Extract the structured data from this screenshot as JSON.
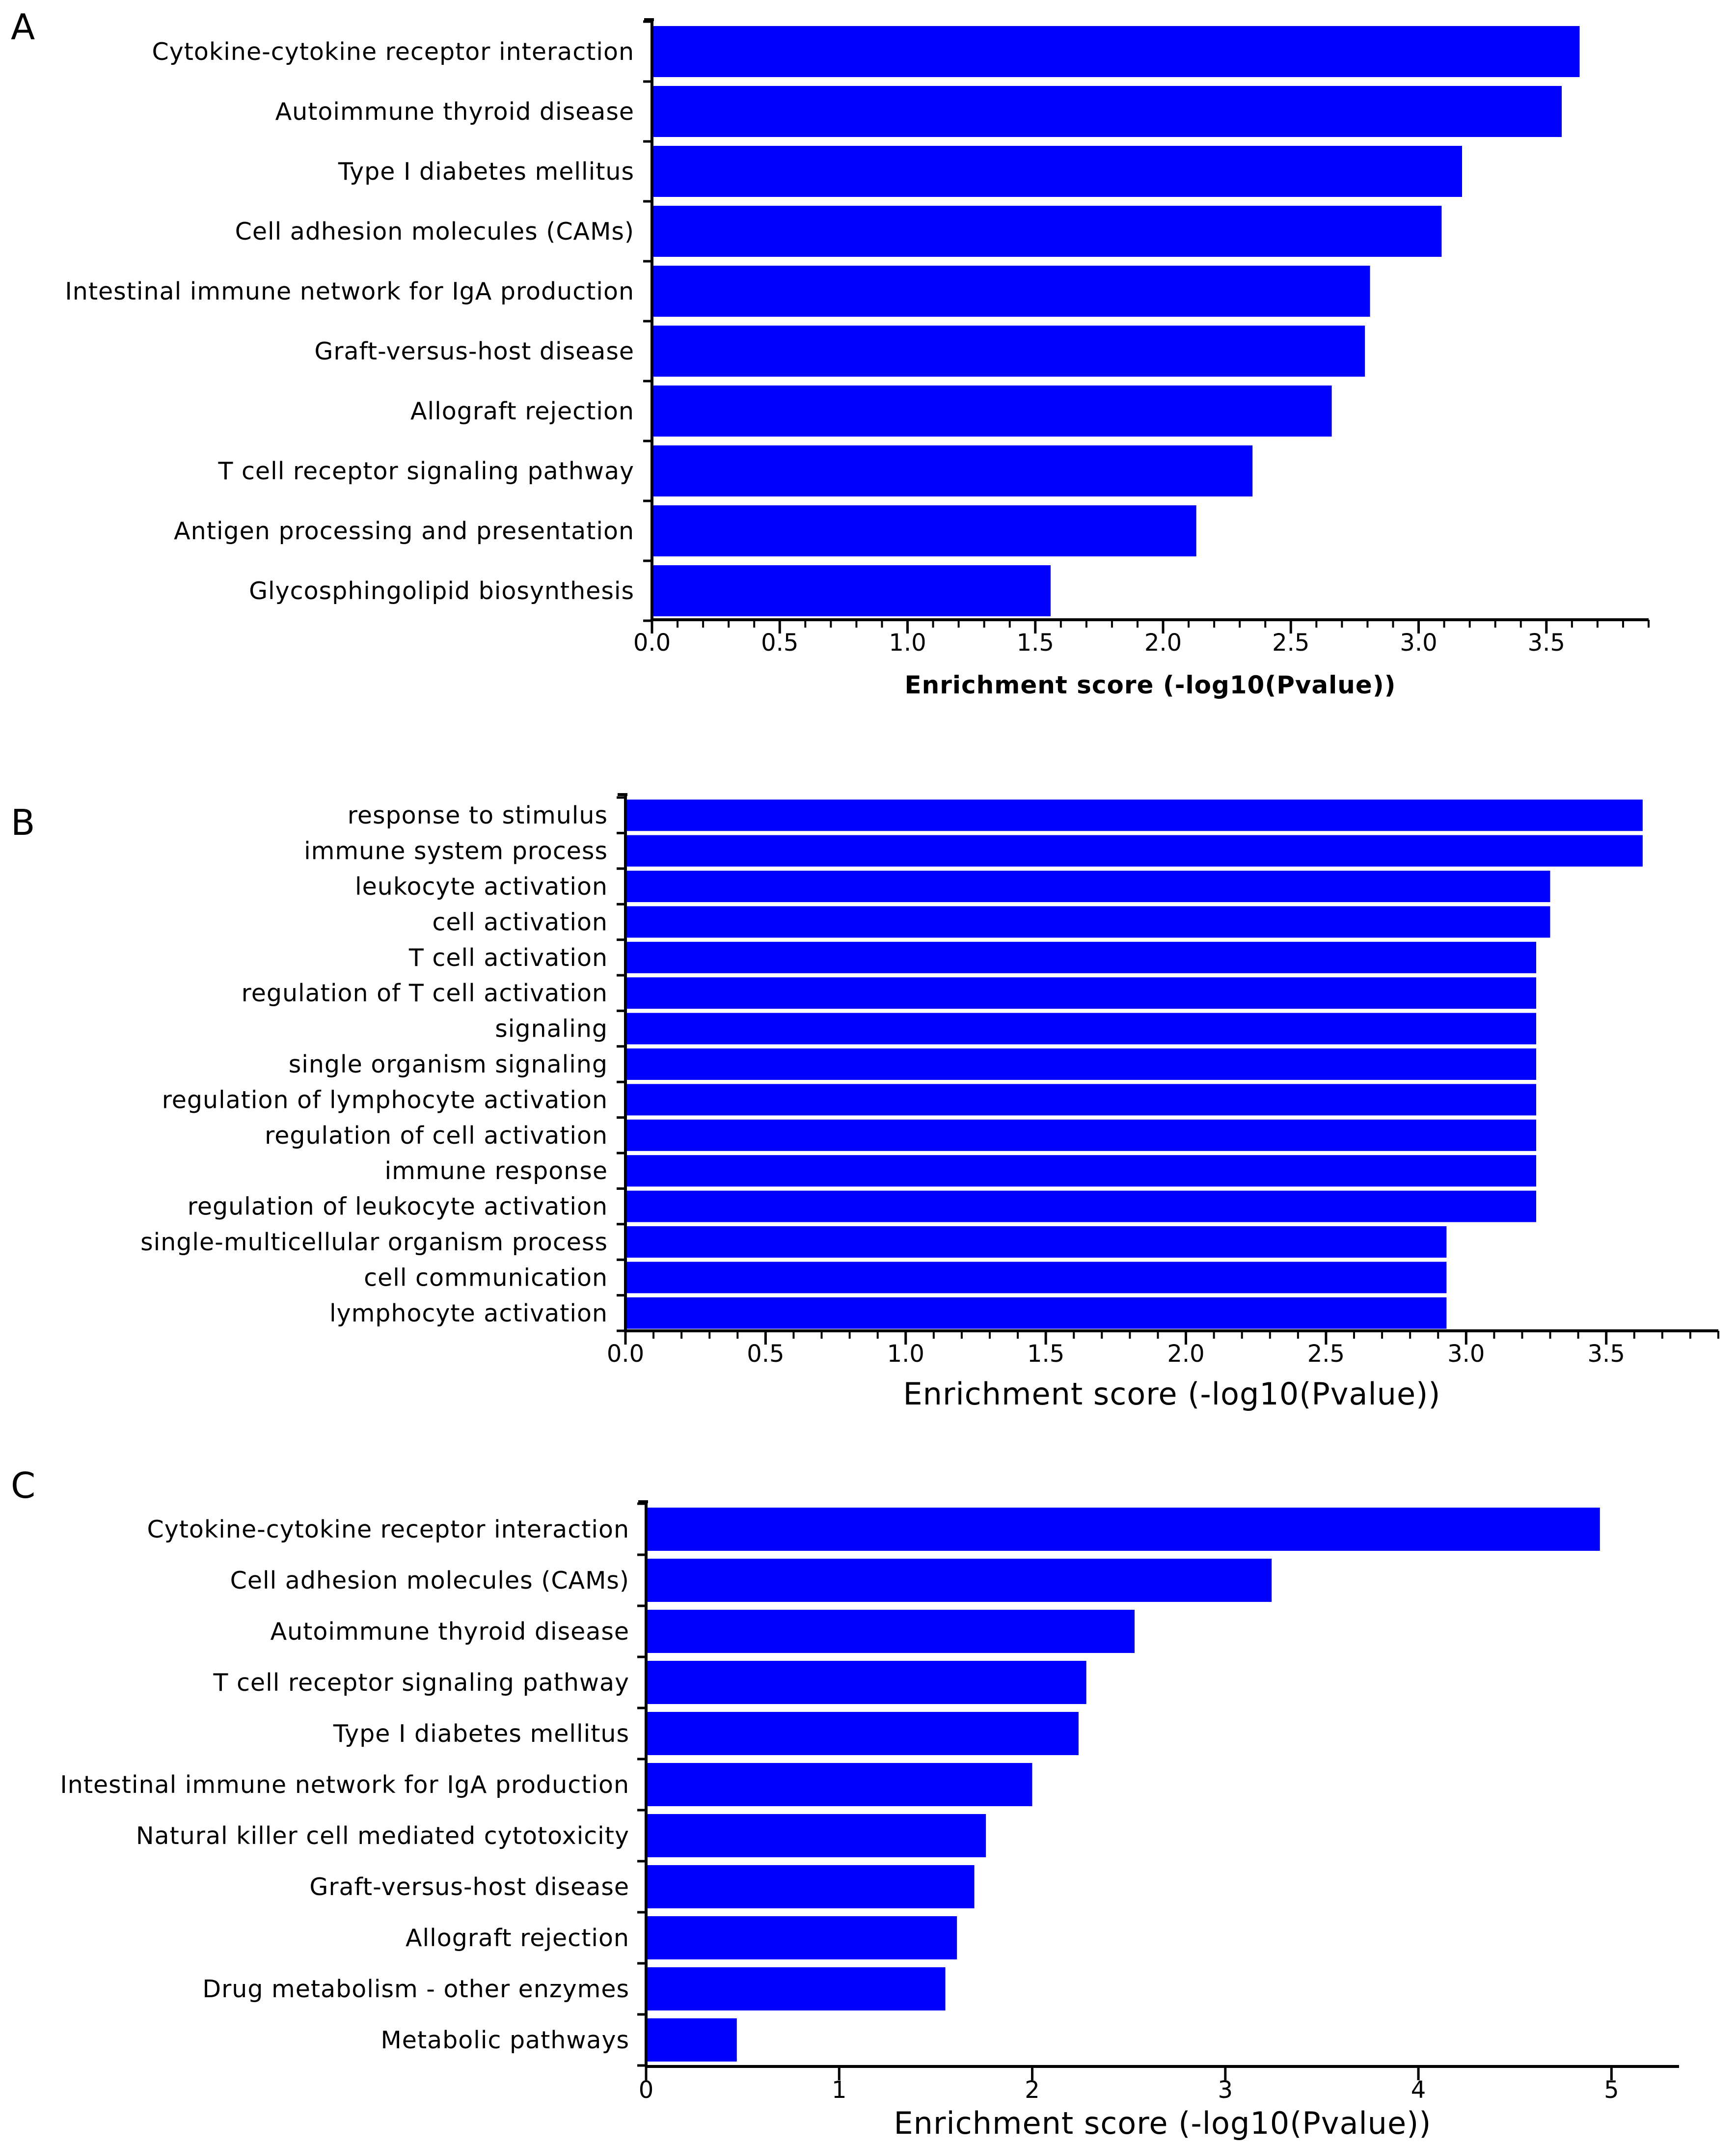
{
  "panels": [
    {
      "letter": "A"
    },
    {
      "letter": "B"
    },
    {
      "letter": "C"
    }
  ],
  "chart_data": [
    {
      "type": "bar",
      "orientation": "horizontal",
      "panel": "A",
      "categories": [
        "Cytokine-cytokine receptor interaction",
        "Autoimmune thyroid disease",
        "Type I diabetes mellitus",
        "Cell adhesion molecules (CAMs)",
        "Intestinal immune network for IgA production",
        "Graft-versus-host disease",
        "Allograft rejection",
        "T cell receptor signaling pathway",
        "Antigen processing and presentation",
        "Glycosphingolipid biosynthesis"
      ],
      "values": [
        3.63,
        3.56,
        3.17,
        3.09,
        2.81,
        2.79,
        2.66,
        2.35,
        2.13,
        1.56
      ],
      "xlabel": "Enrichment score (-log10(Pvalue))",
      "ylabel": "",
      "xlim": [
        0,
        3.9
      ],
      "xticks": [
        "0.0",
        "0.5",
        "1.0",
        "1.5",
        "2.0",
        "2.5",
        "3.0",
        "3.5"
      ],
      "bar_color": "#0000ff",
      "grid": false
    },
    {
      "type": "bar",
      "orientation": "horizontal",
      "panel": "B",
      "categories": [
        "response to stimulus",
        "immune system process",
        "leukocyte activation",
        "cell activation",
        "T cell activation",
        "regulation of T cell activation",
        "signaling",
        "single organism signaling",
        "regulation of lymphocyte activation",
        "regulation of cell activation",
        "immune response",
        "regulation of leukocyte activation",
        "single-multicellular organism process",
        "cell communication",
        "lymphocyte activation"
      ],
      "values": [
        3.63,
        3.63,
        3.3,
        3.3,
        3.25,
        3.25,
        3.25,
        3.25,
        3.25,
        3.25,
        3.25,
        3.25,
        2.93,
        2.93,
        2.93
      ],
      "xlabel": "Enrichment score (-log10(Pvalue))",
      "ylabel": "",
      "xlim": [
        0,
        3.9
      ],
      "xticks": [
        "0.0",
        "0.5",
        "1.0",
        "1.5",
        "2.0",
        "2.5",
        "3.0",
        "3.5"
      ],
      "bar_color": "#0000ff",
      "grid": false
    },
    {
      "type": "bar",
      "orientation": "horizontal",
      "panel": "C",
      "categories": [
        "Cytokine-cytokine receptor interaction",
        "Cell adhesion molecules (CAMs)",
        "Autoimmune thyroid disease",
        "T cell receptor signaling pathway",
        "Type I diabetes mellitus",
        "Intestinal immune network for IgA production",
        "Natural killer cell mediated cytotoxicity",
        "Graft-versus-host disease",
        "Allograft rejection",
        "Drug metabolism - other enzymes",
        "Metabolic pathways"
      ],
      "values": [
        4.94,
        3.24,
        2.53,
        2.28,
        2.24,
        2.0,
        1.76,
        1.7,
        1.61,
        1.55,
        0.47
      ],
      "xlabel": "Enrichment score (-log10(Pvalue))",
      "ylabel": "",
      "xlim": [
        0,
        5.35
      ],
      "xticks": [
        "0",
        "1",
        "2",
        "3",
        "4",
        "5"
      ],
      "bar_color": "#0000ff",
      "grid": false
    }
  ]
}
